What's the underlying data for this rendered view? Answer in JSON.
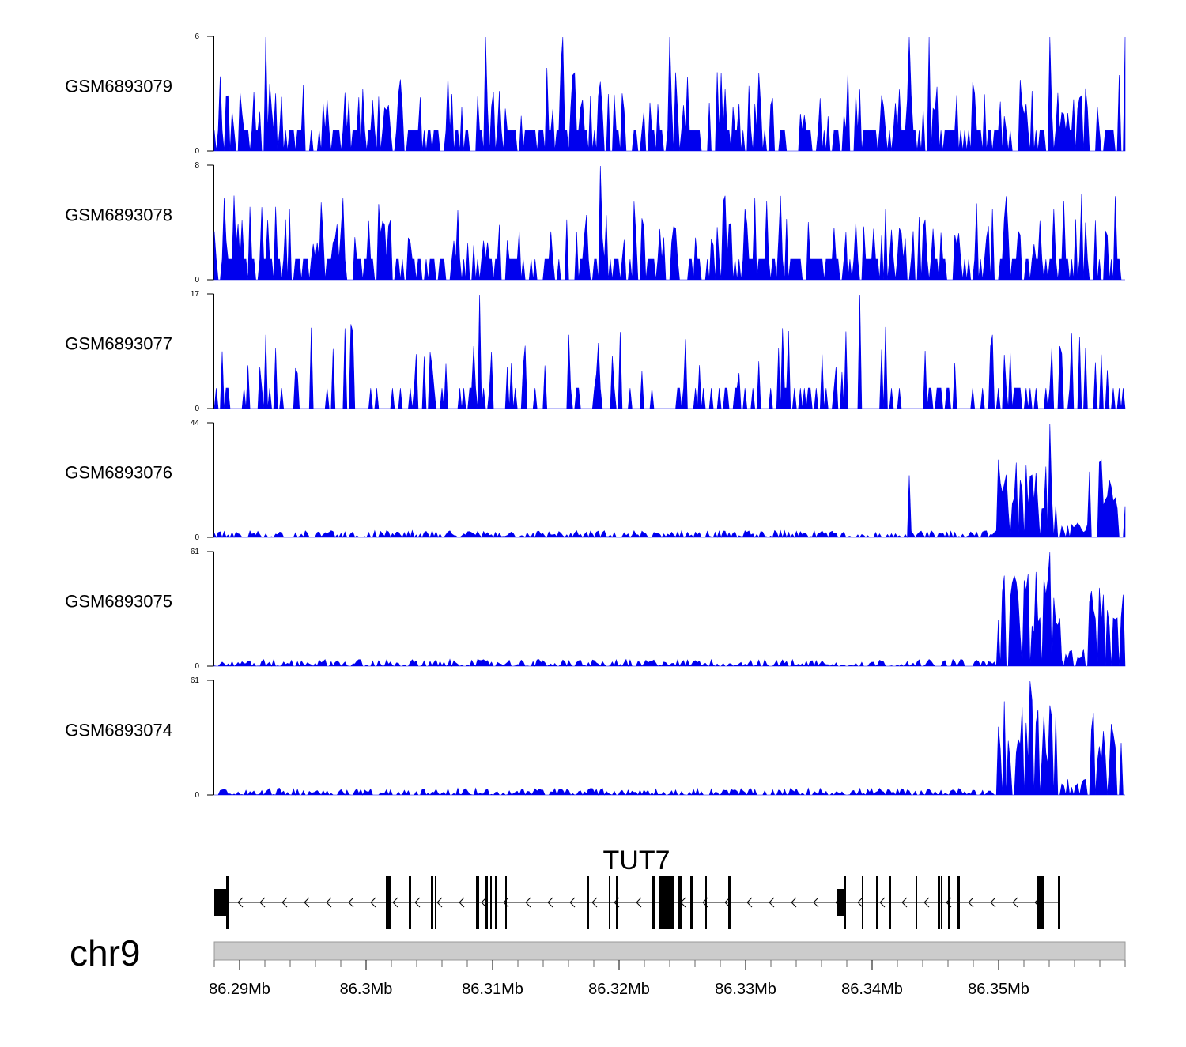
{
  "chart_data": {
    "type": "area",
    "title": "",
    "chromosome": "chr9",
    "xlabel": "",
    "ylabel": "",
    "x_range_bp": [
      86288000,
      86360000
    ],
    "fill_color": "#0000ee",
    "tracks": [
      {
        "name": "GSM6893079",
        "ylim": [
          0,
          6
        ],
        "ymax_label": "6",
        "ymin_label": "0",
        "peaks": [
          [
            86292000,
            6
          ],
          [
            86309500,
            6
          ],
          [
            86315500,
            6
          ],
          [
            86324000,
            6
          ],
          [
            86343000,
            6
          ],
          [
            86361000,
            6
          ],
          [
            86354000,
            6
          ],
          [
            86344500,
            6
          ]
        ]
      },
      {
        "name": "GSM6893078",
        "ylim": [
          0,
          8
        ],
        "ymax_label": "8",
        "ymin_label": "0",
        "peaks": [
          [
            86318500,
            8
          ],
          [
            86294000,
            5
          ],
          [
            86356500,
            6
          ],
          [
            86349500,
            5
          ],
          [
            86330000,
            5
          ]
        ]
      },
      {
        "name": "GSM6893077",
        "ylim": [
          0,
          17
        ],
        "ymax_label": "17",
        "ymin_label": "0",
        "peaks": [
          [
            86309000,
            17
          ],
          [
            86339000,
            17
          ],
          [
            86292000,
            11
          ],
          [
            86316000,
            11
          ],
          [
            86333000,
            12
          ],
          [
            86349500,
            11
          ]
        ]
      },
      {
        "name": "GSM6893076",
        "ylim": [
          0,
          44
        ],
        "ymax_label": "44",
        "ymin_label": "0",
        "peaks": [
          [
            86354000,
            44
          ],
          [
            86350000,
            30
          ],
          [
            86358000,
            29
          ],
          [
            86343000,
            24
          ],
          [
            86353000,
            25
          ]
        ]
      },
      {
        "name": "GSM6893075",
        "ylim": [
          0,
          61
        ],
        "ymax_label": "61",
        "ymin_label": "0",
        "peaks": [
          [
            86354000,
            61
          ],
          [
            86352000,
            46
          ],
          [
            86358000,
            42
          ],
          [
            86351000,
            36
          ]
        ]
      },
      {
        "name": "GSM6893074",
        "ylim": [
          0,
          61
        ],
        "ymax_label": "61",
        "ymin_label": "0",
        "peaks": [
          [
            86352500,
            61
          ],
          [
            86354000,
            48
          ],
          [
            86358000,
            26
          ],
          [
            86351000,
            18
          ]
        ]
      }
    ],
    "gene": {
      "name": "TUT7",
      "strand": "-",
      "start_bp": 86288000,
      "end_bp": 86352500
    },
    "x_ticks": [
      "86.29Mb",
      "86.3Mb",
      "86.31Mb",
      "86.32Mb",
      "86.33Mb",
      "86.34Mb",
      "86.35Mb"
    ],
    "x_tick_values_bp": [
      86290000,
      86300000,
      86310000,
      86320000,
      86330000,
      86340000,
      86350000
    ]
  }
}
